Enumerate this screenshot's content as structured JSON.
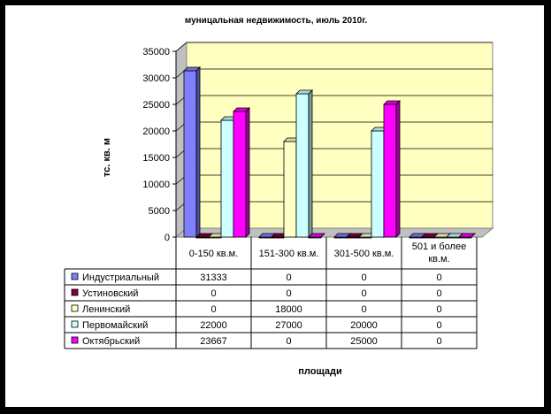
{
  "chart_data": {
    "type": "bar",
    "title": "муницальная недвижимость, июль 2010г.",
    "ylabel": "тс. кв. м",
    "xlabel": "площади",
    "ylim": [
      0,
      35000
    ],
    "yticks": [
      "0",
      "5000",
      "10000",
      "15000",
      "20000",
      "25000",
      "30000",
      "35000"
    ],
    "categories": [
      "0-150 кв.м.",
      "151-300 кв.м.",
      "301-500 кв.м.",
      "501 и более кв.м."
    ],
    "grid": true,
    "legend": "data-table",
    "series": [
      {
        "name": "Индустриальный",
        "values": [
          31333,
          0,
          0,
          0
        ],
        "color": "#8080ff"
      },
      {
        "name": "Устиновский",
        "values": [
          0,
          0,
          0,
          0
        ],
        "color": "#800040"
      },
      {
        "name": "Ленинский",
        "values": [
          0,
          18000,
          0,
          0
        ],
        "color": "#ffffc8"
      },
      {
        "name": "Первомайский",
        "values": [
          22000,
          27000,
          20000,
          0
        ],
        "color": "#ccffff"
      },
      {
        "name": "Октябрьский",
        "values": [
          23667,
          0,
          25000,
          0
        ],
        "color": "#ff00ff"
      }
    ],
    "table_values": [
      [
        "31333",
        "0",
        "0",
        "0"
      ],
      [
        "0",
        "0",
        "0",
        "0"
      ],
      [
        "0",
        "18000",
        "0",
        "0"
      ],
      [
        "22000",
        "27000",
        "20000",
        "0"
      ],
      [
        "23667",
        "0",
        "25000",
        "0"
      ]
    ],
    "plot_background": "#ffffc0"
  }
}
